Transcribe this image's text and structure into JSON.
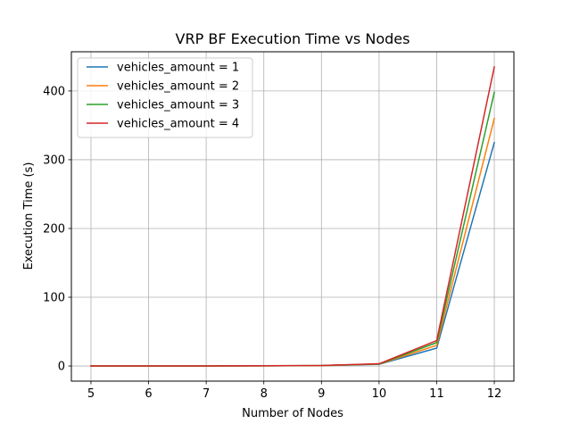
{
  "chart_data": {
    "type": "line",
    "title": "VRP BF Execution Time vs Nodes",
    "xlabel": "Number of Nodes",
    "ylabel": "Execution Time (s)",
    "x": [
      5,
      6,
      7,
      8,
      9,
      10,
      11,
      12
    ],
    "xlim": [
      4.66,
      12.34
    ],
    "ylim": [
      -22,
      457
    ],
    "xticks": [
      "5",
      "6",
      "7",
      "8",
      "9",
      "10",
      "11",
      "12"
    ],
    "yticks": [
      "0",
      "100",
      "200",
      "300",
      "400"
    ],
    "grid": true,
    "legend_position": "upper-left",
    "series": [
      {
        "name": "vehicles_amount = 1",
        "color": "#1f77b4",
        "values": [
          0.01,
          0.02,
          0.05,
          0.2,
          0.5,
          2.5,
          26,
          325
        ]
      },
      {
        "name": "vehicles_amount = 2",
        "color": "#ff7f0e",
        "values": [
          0.01,
          0.02,
          0.06,
          0.25,
          0.6,
          2.8,
          30,
          360
        ]
      },
      {
        "name": "vehicles_amount = 3",
        "color": "#2ca02c",
        "values": [
          0.01,
          0.03,
          0.07,
          0.3,
          0.7,
          3.0,
          34,
          398
        ]
      },
      {
        "name": "vehicles_amount = 4",
        "color": "#d62728",
        "values": [
          0.01,
          0.03,
          0.08,
          0.35,
          0.8,
          3.3,
          37,
          435
        ]
      }
    ]
  }
}
